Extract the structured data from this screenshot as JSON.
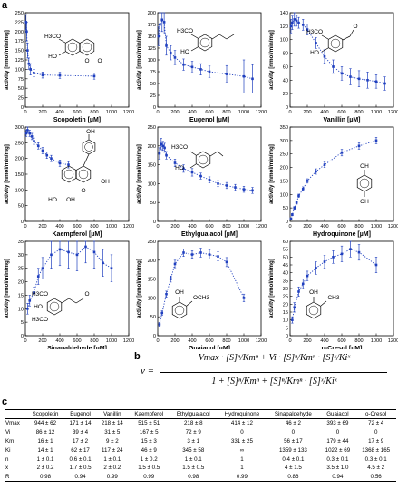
{
  "panel_labels": {
    "a": "a",
    "b": "b",
    "c": "c"
  },
  "colors": {
    "series": "#1f3fbf",
    "axis": "#000000"
  },
  "chart_data": [
    {
      "type": "scatter",
      "compound": "Scopoletin",
      "xlabel": "Scopoletin [µM]",
      "ylabel": "activity [nmol/min/mg]",
      "xlim": [
        0,
        1200
      ],
      "ylim": [
        0,
        250
      ],
      "yticks": [
        0,
        25,
        50,
        75,
        100,
        125,
        150,
        175,
        200,
        225,
        250
      ],
      "points": [
        [
          8,
          225,
          20
        ],
        [
          15,
          200,
          25
        ],
        [
          25,
          150,
          20
        ],
        [
          40,
          115,
          15
        ],
        [
          60,
          100,
          15
        ],
        [
          100,
          90,
          10
        ],
        [
          200,
          85,
          8
        ],
        [
          400,
          84,
          8
        ],
        [
          800,
          82,
          8
        ]
      ],
      "fit": "dotted",
      "structure": "scopoletin"
    },
    {
      "type": "scatter",
      "compound": "Eugenol",
      "xlabel": "Eugenol [µM]",
      "ylabel": "activity [nmol/min/mg]",
      "xlim": [
        0,
        1200
      ],
      "ylim": [
        0,
        200
      ],
      "yticks": [
        0,
        25,
        50,
        75,
        100,
        125,
        150,
        175,
        200
      ],
      "points": [
        [
          10,
          150,
          20
        ],
        [
          25,
          175,
          25
        ],
        [
          50,
          185,
          25
        ],
        [
          75,
          180,
          25
        ],
        [
          100,
          130,
          20
        ],
        [
          150,
          115,
          15
        ],
        [
          200,
          105,
          15
        ],
        [
          300,
          90,
          12
        ],
        [
          400,
          85,
          12
        ],
        [
          500,
          80,
          12
        ],
        [
          600,
          75,
          12
        ],
        [
          800,
          70,
          18
        ],
        [
          1000,
          65,
          35
        ],
        [
          1100,
          60,
          30
        ]
      ],
      "fit": "dotted",
      "structure": "eugenol"
    },
    {
      "type": "scatter",
      "compound": "Vanillin",
      "xlabel": "Vanillin [µM]",
      "ylabel": "activity [nmol/min/mg]",
      "xlim": [
        0,
        1200
      ],
      "ylim": [
        0,
        140
      ],
      "yticks": [
        0,
        20,
        40,
        60,
        80,
        100,
        120,
        140
      ],
      "points": [
        [
          10,
          120,
          10
        ],
        [
          25,
          125,
          10
        ],
        [
          50,
          130,
          10
        ],
        [
          75,
          128,
          8
        ],
        [
          100,
          125,
          8
        ],
        [
          150,
          122,
          8
        ],
        [
          200,
          115,
          8
        ],
        [
          300,
          95,
          8
        ],
        [
          400,
          75,
          10
        ],
        [
          500,
          60,
          10
        ],
        [
          600,
          50,
          10
        ],
        [
          700,
          45,
          12
        ],
        [
          800,
          42,
          12
        ],
        [
          900,
          40,
          12
        ],
        [
          1000,
          38,
          10
        ],
        [
          1100,
          35,
          10
        ]
      ],
      "fit": "dotted",
      "structure": "vanillin"
    },
    {
      "type": "scatter",
      "compound": "Kaempferol",
      "xlabel": "Kaempferol [µM]",
      "ylabel": "activity [nmol/min/mg]",
      "xlim": [
        0,
        1200
      ],
      "ylim": [
        0,
        300
      ],
      "yticks": [
        0,
        50,
        100,
        150,
        200,
        250,
        300
      ],
      "points": [
        [
          10,
          280,
          10
        ],
        [
          25,
          290,
          10
        ],
        [
          50,
          280,
          10
        ],
        [
          75,
          270,
          10
        ],
        [
          100,
          255,
          10
        ],
        [
          150,
          240,
          10
        ],
        [
          200,
          225,
          10
        ],
        [
          250,
          210,
          10
        ],
        [
          300,
          200,
          10
        ],
        [
          400,
          185,
          10
        ],
        [
          500,
          180,
          10
        ]
      ],
      "fit": "dotted",
      "structure": "kaempferol"
    },
    {
      "type": "scatter",
      "compound": "Ethylguaiacol",
      "xlabel": "Ethylguaiacol [µM]",
      "ylabel": "activity [nmol/min/mg]",
      "xlim": [
        0,
        1200
      ],
      "ylim": [
        0,
        250
      ],
      "yticks": [
        0,
        50,
        100,
        150,
        200,
        250
      ],
      "points": [
        [
          20,
          180,
          15
        ],
        [
          40,
          205,
          15
        ],
        [
          60,
          200,
          12
        ],
        [
          80,
          195,
          12
        ],
        [
          100,
          175,
          10
        ],
        [
          200,
          155,
          10
        ],
        [
          300,
          140,
          10
        ],
        [
          400,
          130,
          10
        ],
        [
          500,
          120,
          8
        ],
        [
          600,
          110,
          8
        ],
        [
          700,
          100,
          8
        ],
        [
          800,
          95,
          8
        ],
        [
          900,
          90,
          8
        ],
        [
          1000,
          85,
          8
        ],
        [
          1100,
          82,
          8
        ]
      ],
      "fit": "dotted",
      "structure": "ethylguaiacol"
    },
    {
      "type": "scatter",
      "compound": "Hydroquinone",
      "xlabel": "Hydroquinone [µM]",
      "ylabel": "activity [nmol/min/mg]",
      "xlim": [
        0,
        1200
      ],
      "ylim": [
        0,
        350
      ],
      "yticks": [
        0,
        50,
        100,
        150,
        200,
        250,
        300,
        350
      ],
      "points": [
        [
          10,
          10,
          3
        ],
        [
          25,
          25,
          4
        ],
        [
          50,
          50,
          5
        ],
        [
          75,
          70,
          6
        ],
        [
          100,
          95,
          6
        ],
        [
          150,
          120,
          8
        ],
        [
          200,
          150,
          8
        ],
        [
          300,
          185,
          10
        ],
        [
          400,
          210,
          10
        ],
        [
          600,
          255,
          12
        ],
        [
          800,
          280,
          12
        ],
        [
          1000,
          300,
          12
        ]
      ],
      "fit": "dotted",
      "structure": "hydroquinone"
    },
    {
      "type": "scatter",
      "compound": "Sinapaldehyde",
      "xlabel": "Sinapaldehyde [µM]",
      "ylabel": "activity [nmol/min/mg]",
      "xlim": [
        0,
        1200
      ],
      "ylim": [
        0,
        35
      ],
      "yticks": [
        0,
        5,
        10,
        15,
        20,
        25,
        30,
        35
      ],
      "points": [
        [
          25,
          10,
          2
        ],
        [
          50,
          13,
          2
        ],
        [
          100,
          16,
          2
        ],
        [
          150,
          22,
          3
        ],
        [
          200,
          25,
          4
        ],
        [
          300,
          30,
          5
        ],
        [
          400,
          32,
          6
        ],
        [
          500,
          31,
          6
        ],
        [
          600,
          30,
          6
        ],
        [
          700,
          33,
          6
        ],
        [
          800,
          31,
          6
        ],
        [
          900,
          27,
          5
        ],
        [
          1000,
          25,
          5
        ]
      ],
      "fit": "dotted",
      "structure": "sinapaldehyde"
    },
    {
      "type": "scatter",
      "compound": "Guaiacol",
      "xlabel": "Guaiacol [µM]",
      "ylabel": "activity [nmol/min/mg]",
      "xlim": [
        0,
        1200
      ],
      "ylim": [
        0,
        250
      ],
      "yticks": [
        0,
        50,
        100,
        150,
        200,
        250
      ],
      "points": [
        [
          20,
          30,
          5
        ],
        [
          50,
          60,
          6
        ],
        [
          100,
          110,
          8
        ],
        [
          150,
          150,
          8
        ],
        [
          200,
          190,
          10
        ],
        [
          300,
          220,
          10
        ],
        [
          400,
          215,
          10
        ],
        [
          500,
          220,
          12
        ],
        [
          600,
          215,
          12
        ],
        [
          700,
          210,
          12
        ],
        [
          800,
          195,
          12
        ],
        [
          1000,
          100,
          10
        ]
      ],
      "fit": "dotted",
      "structure": "guaiacol"
    },
    {
      "type": "scatter",
      "compound": "o-Cresol",
      "xlabel": "o-Cresol [µM]",
      "ylabel": "activity [nmol/min/mg]",
      "xlim": [
        0,
        1200
      ],
      "ylim": [
        0,
        60
      ],
      "yticks": [
        0,
        5,
        10,
        15,
        20,
        25,
        30,
        35,
        40,
        45,
        50,
        55,
        60
      ],
      "points": [
        [
          25,
          10,
          2
        ],
        [
          50,
          18,
          3
        ],
        [
          100,
          28,
          3
        ],
        [
          150,
          33,
          3
        ],
        [
          200,
          38,
          3
        ],
        [
          300,
          43,
          4
        ],
        [
          400,
          47,
          4
        ],
        [
          500,
          50,
          4
        ],
        [
          600,
          52,
          5
        ],
        [
          700,
          55,
          5
        ],
        [
          800,
          53,
          5
        ],
        [
          1000,
          45,
          5
        ]
      ],
      "fit": "dotted",
      "structure": "o-cresol"
    }
  ],
  "structure_labels": {
    "scopoletin": [
      "H3CO",
      "HO",
      "O",
      "O"
    ],
    "eugenol": [
      "H3CO",
      "HO"
    ],
    "vanillin": [
      "H3CO",
      "HO",
      "O"
    ],
    "kaempferol": [
      "OH",
      "HO",
      "OH",
      "O",
      "OH"
    ],
    "ethylguaiacol": [
      "H3CO",
      "HO"
    ],
    "hydroquinone": [
      "OH",
      "OH"
    ],
    "sinapaldehyde": [
      "H3CO",
      "HO",
      "H3CO",
      "O"
    ],
    "guaiacol": [
      "OH",
      "OCH3"
    ],
    "o-cresol": [
      "OH",
      "CH3"
    ]
  },
  "equation": {
    "lhs": "v =",
    "numerator": "Vmax · [S]ⁿ/Kmⁿ + Vi · [S]ⁿ/Kmⁿ · [S]ˣ/Kiˣ",
    "denominator": "1 + [S]ⁿ/Kmⁿ + [S]ⁿ/Kmⁿ · [S]ˣ/Kiˣ"
  },
  "table": {
    "columns": [
      "",
      "Scopoletin",
      "Eugenol",
      "Vanillin",
      "Kaempferol",
      "Ethylguaiacol",
      "Hydroquinone",
      "Sinapaldehyde",
      "Guaiacol",
      "o-Cresol"
    ],
    "rows": [
      [
        "Vmax",
        "944 ± 62",
        "171 ± 14",
        "218 ± 14",
        "515 ± 51",
        "218 ± 8",
        "414 ± 12",
        "46 ± 2",
        "393 ± 69",
        "72 ± 4"
      ],
      [
        "Vi",
        "86 ± 12",
        "39 ± 4",
        "31 ± 5",
        "167 ± 5",
        "72 ± 9",
        "0",
        "0",
        "0",
        "0"
      ],
      [
        "Km",
        "16 ± 1",
        "17 ± 2",
        "9 ± 2",
        "15 ± 3",
        "3 ± 1",
        "331 ± 25",
        "56 ± 17",
        "179 ± 44",
        "17 ± 9"
      ],
      [
        "Ki",
        "14 ± 1",
        "62 ± 17",
        "117 ± 24",
        "46 ± 9",
        "345 ± 58",
        "∞",
        "1359 ± 133",
        "1022 ± 69",
        "1368 ± 165"
      ],
      [
        "n",
        "1 ± 0.1",
        "0.6 ± 0.1",
        "1 ± 0.1",
        "1 ± 0.2",
        "1 ± 0.1",
        "1",
        "0.4 ± 0.1",
        "0.3 ± 0.1",
        "0.3 ± 0.1"
      ],
      [
        "x",
        "2 ± 0.2",
        "1.7 ± 0.5",
        "2 ± 0.2",
        "1.5 ± 0.5",
        "1.5 ± 0.5",
        "1",
        "4 ± 1.5",
        "3.5 ± 1.0",
        "4.5 ± 2"
      ],
      [
        "R",
        "0.98",
        "0.94",
        "0.99",
        "0.99",
        "0.98",
        "0.99",
        "0.86",
        "0.94",
        "0.56"
      ]
    ]
  }
}
